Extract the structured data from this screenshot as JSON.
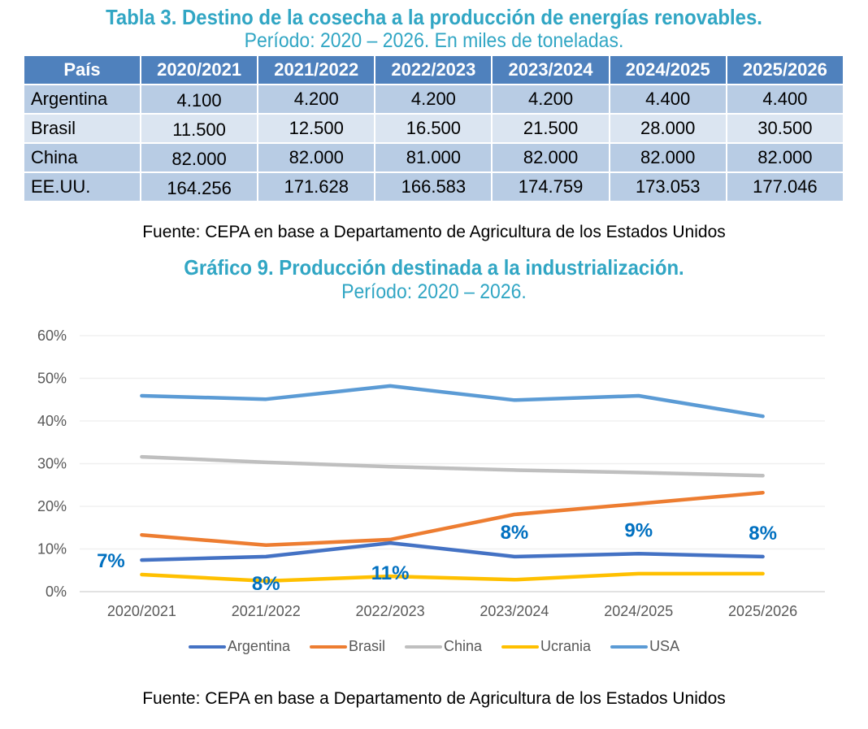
{
  "table": {
    "title": "Tabla 3. Destino de la cosecha a la producción de energías renovables.",
    "subtitle": "Período: 2020 – 2026. En miles de toneladas.",
    "headers": [
      "País",
      "2020/2021",
      "2021/2022",
      "2022/2023",
      "2023/2024",
      "2024/2025",
      "2025/2026"
    ],
    "rows": [
      {
        "country": "Argentina",
        "values": [
          "4.100",
          "4.200",
          "4.200",
          "4.200",
          "4.400",
          "4.400"
        ]
      },
      {
        "country": "Brasil",
        "values": [
          "11.500",
          "12.500",
          "16.500",
          "21.500",
          "28.000",
          "30.500"
        ]
      },
      {
        "country": "China",
        "values": [
          "82.000",
          "82.000",
          "81.000",
          "82.000",
          "82.000",
          "82.000"
        ]
      },
      {
        "country": "EE.UU.",
        "values": [
          "164.256",
          "171.628",
          "166.583",
          "174.759",
          "173.053",
          "177.046"
        ]
      }
    ],
    "source": "Fuente: CEPA en base a Departamento de Agricultura de los Estados Unidos",
    "colors": {
      "header_bg": "#4f81bd",
      "row_dark": "#b8cce4",
      "row_light": "#dbe5f1"
    }
  },
  "chart_data": {
    "type": "line",
    "title": "Gráfico 9. Producción destinada a la industrialización.",
    "subtitle": "Período: 2020 – 2026.",
    "xlabel": "",
    "ylabel": "",
    "categories": [
      "2020/2021",
      "2021/2022",
      "2022/2023",
      "2023/2024",
      "2024/2025",
      "2025/2026"
    ],
    "ylim": [
      0,
      60
    ],
    "yticks": [
      0,
      10,
      20,
      30,
      40,
      50,
      60
    ],
    "ytick_labels": [
      "0%",
      "10%",
      "20%",
      "30%",
      "40%",
      "50%",
      "60%"
    ],
    "grid": true,
    "legend_position": "bottom",
    "series": [
      {
        "name": "Argentina",
        "color": "#4472c4",
        "values": [
          7.4,
          8.2,
          11.4,
          8.2,
          8.9,
          8.2
        ]
      },
      {
        "name": "Brasil",
        "color": "#ed7d31",
        "values": [
          13.3,
          10.9,
          12.2,
          18.1,
          20.6,
          23.2
        ]
      },
      {
        "name": "China",
        "color": "#bfbfbf",
        "values": [
          31.6,
          30.3,
          29.3,
          28.5,
          27.9,
          27.2
        ]
      },
      {
        "name": "Ucrania",
        "color": "#ffc000",
        "values": [
          4.0,
          2.5,
          3.6,
          2.8,
          4.2,
          4.2
        ]
      },
      {
        "name": "USA",
        "color": "#5b9bd5",
        "values": [
          45.9,
          45.1,
          48.2,
          44.9,
          45.9,
          41.1
        ]
      }
    ],
    "annotations": [
      {
        "series": "Argentina",
        "category": "2020/2021",
        "text": "7%"
      },
      {
        "series": "Argentina",
        "category": "2021/2022",
        "text": "8%"
      },
      {
        "series": "Argentina",
        "category": "2022/2023",
        "text": "11%"
      },
      {
        "series": "Argentina",
        "category": "2023/2024",
        "text": "8%"
      },
      {
        "series": "Argentina",
        "category": "2024/2025",
        "text": "9%"
      },
      {
        "series": "Argentina",
        "category": "2025/2026",
        "text": "8%"
      }
    ],
    "annotation_color": "#0070c0",
    "source": "Fuente: CEPA en base a Departamento de Agricultura de los Estados Unidos"
  }
}
